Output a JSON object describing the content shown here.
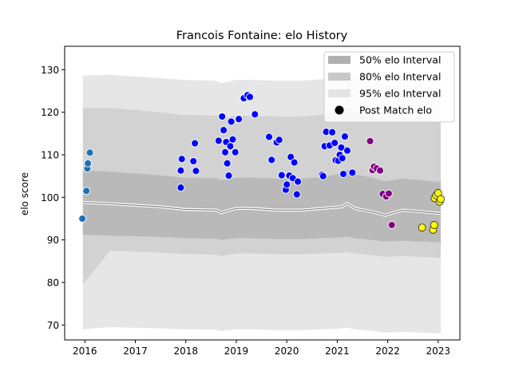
{
  "chart_data": {
    "type": "scatter",
    "title": "Francois Fontaine: elo History",
    "xlabel": "",
    "ylabel": "elo score",
    "xlim": [
      2015.6,
      2023.43
    ],
    "ylim": [
      66.5,
      135.5
    ],
    "xticks": [
      2016,
      2017,
      2018,
      2019,
      2020,
      2021,
      2022,
      2023
    ],
    "yticks": [
      70,
      80,
      90,
      100,
      110,
      120,
      130
    ],
    "grid": false,
    "legend_position": "top-right",
    "legend": [
      {
        "label": "50% elo Interval",
        "kind": "patch",
        "color": "#b0b0b0"
      },
      {
        "label": "80% elo Interval",
        "kind": "patch",
        "color": "#c8c8c8"
      },
      {
        "label": "95% elo Interval",
        "kind": "patch",
        "color": "#e4e4e4"
      },
      {
        "label": "Post Match elo",
        "kind": "marker",
        "color": "#000000"
      }
    ],
    "bands": {
      "x": [
        2015.96,
        2016.5,
        2017.5,
        2017.95,
        2018.6,
        2018.7,
        2019.0,
        2019.3,
        2019.8,
        2020.3,
        2020.7,
        2021.1,
        2021.2,
        2021.35,
        2021.7,
        2021.95,
        2022.3,
        2023.05
      ],
      "median": [
        98.8,
        98.5,
        97.8,
        97.2,
        97.0,
        96.4,
        97.4,
        97.4,
        97.0,
        97.0,
        97.4,
        97.8,
        98.6,
        97.4,
        96.6,
        95.8,
        97.0,
        96.2
      ],
      "p50_low": [
        91.2,
        91.0,
        90.7,
        90.4,
        90.3,
        90.0,
        90.4,
        90.4,
        90.2,
        90.2,
        90.4,
        90.6,
        90.8,
        90.4,
        90.0,
        89.6,
        89.8,
        89.4
      ],
      "p50_high": [
        106.3,
        106.0,
        105.2,
        104.6,
        104.5,
        104.0,
        104.6,
        104.6,
        104.4,
        104.4,
        104.8,
        105.6,
        106.6,
        105.4,
        104.6,
        103.8,
        104.4,
        103.6
      ],
      "p80_low": [
        79.5,
        87.5,
        87.0,
        86.7,
        86.5,
        86.2,
        86.8,
        86.8,
        86.6,
        86.6,
        86.8,
        87.0,
        87.2,
        86.8,
        86.4,
        86.0,
        86.2,
        85.8
      ],
      "p80_high": [
        121.0,
        121.0,
        120.0,
        119.4,
        119.2,
        118.6,
        119.2,
        119.2,
        119.0,
        119.0,
        119.4,
        120.2,
        121.4,
        120.0,
        119.0,
        118.0,
        118.6,
        117.8
      ],
      "p95_low": [
        69.0,
        69.5,
        69.2,
        69.0,
        68.9,
        68.6,
        69.0,
        69.0,
        68.8,
        68.8,
        69.0,
        69.2,
        69.4,
        69.0,
        68.6,
        68.2,
        68.4,
        68.0
      ],
      "p95_high": [
        128.6,
        128.8,
        128.0,
        127.6,
        127.4,
        126.8,
        127.6,
        127.6,
        127.4,
        127.4,
        127.8,
        128.6,
        129.6,
        128.2,
        127.2,
        126.2,
        126.8,
        126.0
      ]
    },
    "series": [
      {
        "color": "#1f6fb4",
        "points": [
          [
            2015.95,
            95.0
          ],
          [
            2016.03,
            101.5
          ],
          [
            2016.05,
            106.8
          ],
          [
            2016.06,
            108.0
          ],
          [
            2016.1,
            110.5
          ]
        ]
      },
      {
        "color": "#0000ff",
        "points": [
          [
            2017.9,
            106.3
          ],
          [
            2017.92,
            109.0
          ],
          [
            2017.9,
            102.3
          ],
          [
            2018.15,
            108.5
          ],
          [
            2018.18,
            112.7
          ],
          [
            2018.2,
            106.2
          ],
          [
            2018.65,
            113.3
          ],
          [
            2018.72,
            119.0
          ],
          [
            2018.75,
            115.8
          ],
          [
            2018.78,
            110.6
          ],
          [
            2018.8,
            113.0
          ],
          [
            2018.82,
            108.0
          ],
          [
            2018.85,
            105.1
          ],
          [
            2018.88,
            112.0
          ],
          [
            2018.9,
            117.8
          ],
          [
            2018.93,
            113.6
          ],
          [
            2018.98,
            110.6
          ],
          [
            2019.05,
            118.4
          ],
          [
            2019.15,
            123.3
          ],
          [
            2019.22,
            124.0
          ],
          [
            2019.27,
            123.6
          ],
          [
            2019.37,
            119.5
          ],
          [
            2019.65,
            114.2
          ],
          [
            2019.7,
            108.8
          ],
          [
            2019.8,
            112.9
          ],
          [
            2019.85,
            113.5
          ],
          [
            2019.9,
            105.2
          ],
          [
            2019.98,
            101.8
          ],
          [
            2020.0,
            103.0
          ],
          [
            2020.05,
            105.1
          ],
          [
            2020.08,
            109.5
          ],
          [
            2020.12,
            104.5
          ],
          [
            2020.15,
            108.2
          ],
          [
            2020.2,
            100.7
          ],
          [
            2020.22,
            103.7
          ],
          [
            2020.7,
            105.3
          ],
          [
            2020.72,
            105.0
          ],
          [
            2020.75,
            112.0
          ],
          [
            2020.78,
            115.4
          ],
          [
            2020.85,
            112.2
          ],
          [
            2020.9,
            115.3
          ],
          [
            2020.95,
            112.8
          ],
          [
            2020.97,
            108.7
          ],
          [
            2021.02,
            108.6
          ],
          [
            2021.05,
            110.0
          ],
          [
            2021.08,
            111.7
          ],
          [
            2021.1,
            109.2
          ],
          [
            2021.12,
            105.5
          ],
          [
            2021.15,
            114.3
          ],
          [
            2021.2,
            111.0
          ],
          [
            2021.3,
            105.8
          ]
        ]
      },
      {
        "color": "#800080",
        "points": [
          [
            2021.65,
            113.2
          ],
          [
            2021.7,
            106.4
          ],
          [
            2021.73,
            107.2
          ],
          [
            2021.78,
            106.8
          ],
          [
            2021.85,
            106.3
          ],
          [
            2021.9,
            100.8
          ],
          [
            2021.97,
            100.2
          ],
          [
            2022.02,
            100.9
          ],
          [
            2022.08,
            93.5
          ]
        ]
      },
      {
        "color": "#ffff00",
        "points": [
          [
            2022.68,
            92.9
          ],
          [
            2022.9,
            92.4
          ],
          [
            2022.92,
            93.5
          ],
          [
            2022.93,
            99.8
          ],
          [
            2022.96,
            100.5
          ],
          [
            2023.0,
            101.0
          ],
          [
            2023.03,
            99.0
          ],
          [
            2023.05,
            99.6
          ]
        ]
      }
    ]
  }
}
